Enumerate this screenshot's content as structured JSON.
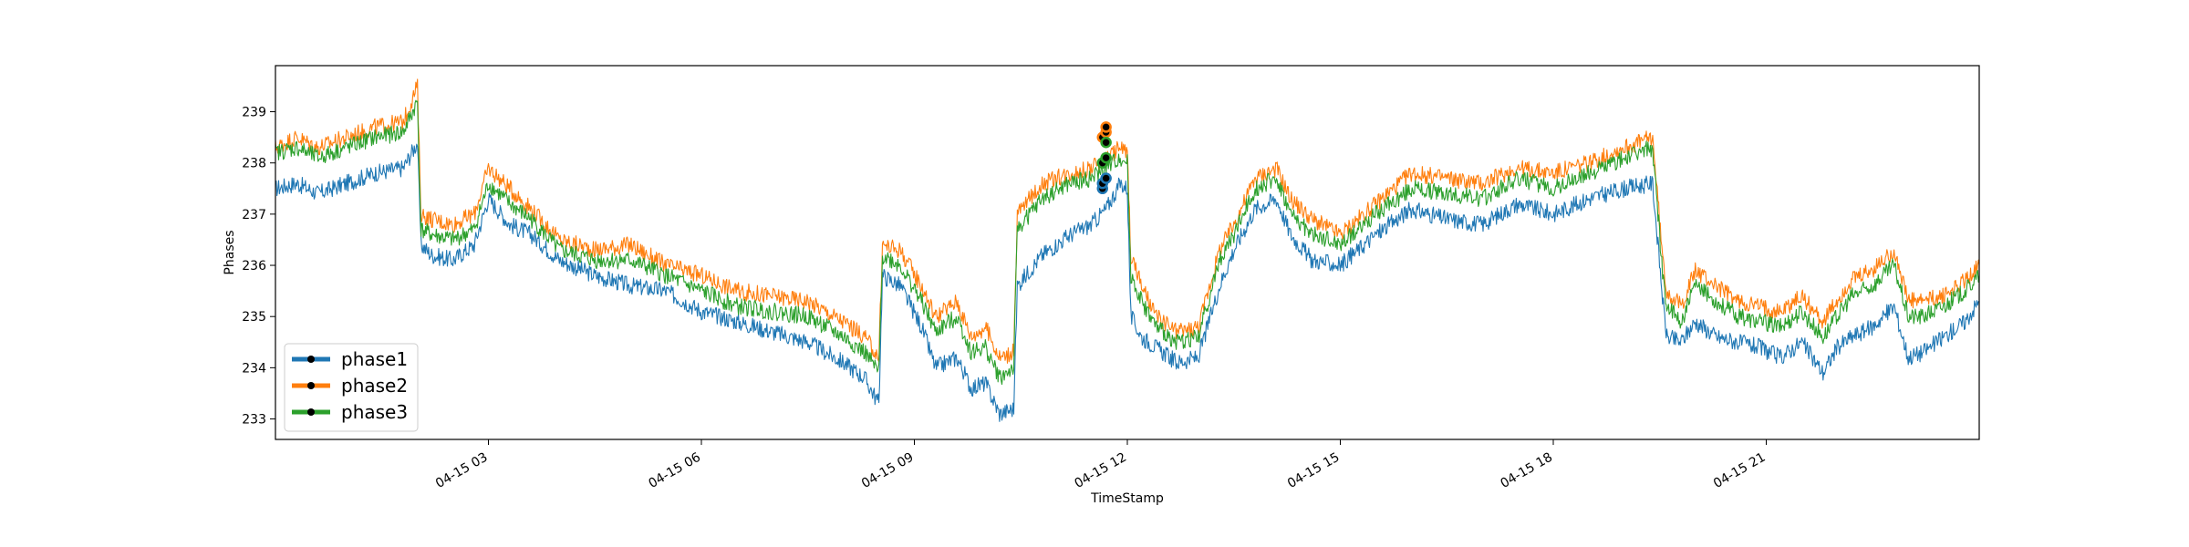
{
  "chart_data": {
    "type": "line",
    "title": "",
    "xlabel": "TimeStamp",
    "ylabel": "Phases",
    "x_ticks": [
      "04-15 03",
      "04-15 06",
      "04-15 09",
      "04-15 12",
      "04-15 15",
      "04-15 18",
      "04-15 21"
    ],
    "x_tick_hours": [
      3,
      6,
      9,
      12,
      15,
      18,
      21
    ],
    "xlim_hours": [
      0.0,
      24.0
    ],
    "y_ticks": [
      233,
      234,
      235,
      236,
      237,
      238,
      239
    ],
    "ylim": [
      232.6,
      239.9
    ],
    "grid": false,
    "legend": {
      "position": "lower-left",
      "entries": [
        "phase1",
        "phase2",
        "phase3"
      ]
    },
    "series": [
      {
        "name": "phase1",
        "color": "#1f77b4",
        "x_hours": [
          0.0,
          0.3,
          0.6,
          1.0,
          1.4,
          1.8,
          2.0,
          2.05,
          2.2,
          2.5,
          2.8,
          3.0,
          3.3,
          3.6,
          4.0,
          4.5,
          5.0,
          5.5,
          6.0,
          6.5,
          7.0,
          7.5,
          8.0,
          8.3,
          8.5,
          8.55,
          8.8,
          9.1,
          9.3,
          9.6,
          9.8,
          10.0,
          10.2,
          10.4,
          10.45,
          10.8,
          11.2,
          11.5,
          11.7,
          11.9,
          12.0,
          12.05,
          12.2,
          12.4,
          12.7,
          13.0,
          13.3,
          13.5,
          13.8,
          14.1,
          14.3,
          14.6,
          15.0,
          15.5,
          16.0,
          16.5,
          17.0,
          17.5,
          18.0,
          18.5,
          19.0,
          19.4,
          19.55,
          19.6,
          19.8,
          20.0,
          20.3,
          20.6,
          20.9,
          21.2,
          21.5,
          21.8,
          22.0,
          22.2,
          22.5,
          22.8,
          23.0,
          23.2,
          23.5,
          23.8,
          24.0
        ],
        "values": [
          237.5,
          237.6,
          237.4,
          237.6,
          237.8,
          237.9,
          238.4,
          236.4,
          236.2,
          236.1,
          236.4,
          237.3,
          236.8,
          236.6,
          236.1,
          235.8,
          235.6,
          235.5,
          235.1,
          234.9,
          234.7,
          234.5,
          234.1,
          233.8,
          233.3,
          235.8,
          235.6,
          234.8,
          234.0,
          234.2,
          233.6,
          233.7,
          233.1,
          233.2,
          235.6,
          236.2,
          236.6,
          236.8,
          237.1,
          237.6,
          237.5,
          235.0,
          234.6,
          234.4,
          234.1,
          234.2,
          235.6,
          236.3,
          237.1,
          237.3,
          236.6,
          236.1,
          236.0,
          236.6,
          237.1,
          236.9,
          236.8,
          237.2,
          237.0,
          237.3,
          237.5,
          237.6,
          235.2,
          234.6,
          234.5,
          234.9,
          234.6,
          234.5,
          234.4,
          234.2,
          234.5,
          233.9,
          234.4,
          234.6,
          234.8,
          235.2,
          234.2,
          234.3,
          234.6,
          234.9,
          235.3
        ]
      },
      {
        "name": "phase2",
        "color": "#ff7f0e",
        "x_hours": [
          0.0,
          0.3,
          0.6,
          1.0,
          1.4,
          1.8,
          2.0,
          2.05,
          2.2,
          2.5,
          2.8,
          3.0,
          3.3,
          3.6,
          4.0,
          4.5,
          5.0,
          5.5,
          6.0,
          6.5,
          7.0,
          7.5,
          8.0,
          8.3,
          8.5,
          8.55,
          8.8,
          9.1,
          9.3,
          9.6,
          9.8,
          10.0,
          10.2,
          10.4,
          10.45,
          10.8,
          11.2,
          11.5,
          11.7,
          11.9,
          12.0,
          12.05,
          12.2,
          12.4,
          12.7,
          13.0,
          13.3,
          13.5,
          13.8,
          14.1,
          14.3,
          14.6,
          15.0,
          15.5,
          16.0,
          16.5,
          17.0,
          17.5,
          18.0,
          18.5,
          19.0,
          19.4,
          19.55,
          19.6,
          19.8,
          20.0,
          20.3,
          20.6,
          20.9,
          21.2,
          21.5,
          21.8,
          22.0,
          22.2,
          22.5,
          22.8,
          23.0,
          23.2,
          23.5,
          23.8,
          24.0
        ],
        "values": [
          238.3,
          238.5,
          238.3,
          238.5,
          238.7,
          238.8,
          239.5,
          237.0,
          236.9,
          236.8,
          237.0,
          237.9,
          237.5,
          237.1,
          236.5,
          236.3,
          236.4,
          236.0,
          235.8,
          235.5,
          235.4,
          235.3,
          234.9,
          234.6,
          234.2,
          236.4,
          236.3,
          235.6,
          235.0,
          235.3,
          234.6,
          234.8,
          234.2,
          234.3,
          237.0,
          237.6,
          237.8,
          237.9,
          238.1,
          238.3,
          238.2,
          236.2,
          235.6,
          235.0,
          234.7,
          234.8,
          236.3,
          236.8,
          237.7,
          237.9,
          237.3,
          236.9,
          236.6,
          237.2,
          237.8,
          237.7,
          237.6,
          237.9,
          237.8,
          238.0,
          238.3,
          238.5,
          236.0,
          235.5,
          235.2,
          235.9,
          235.6,
          235.3,
          235.2,
          235.1,
          235.4,
          234.9,
          235.3,
          235.7,
          235.9,
          236.3,
          235.3,
          235.3,
          235.4,
          235.7,
          236.0
        ]
      },
      {
        "name": "phase3",
        "color": "#2ca02c",
        "x_hours": [
          0.0,
          0.3,
          0.6,
          1.0,
          1.4,
          1.8,
          2.0,
          2.05,
          2.2,
          2.5,
          2.8,
          3.0,
          3.3,
          3.6,
          4.0,
          4.5,
          5.0,
          5.5,
          6.0,
          6.5,
          7.0,
          7.5,
          8.0,
          8.3,
          8.5,
          8.55,
          8.8,
          9.1,
          9.3,
          9.6,
          9.8,
          10.0,
          10.2,
          10.4,
          10.45,
          10.8,
          11.2,
          11.5,
          11.7,
          11.9,
          12.0,
          12.05,
          12.2,
          12.4,
          12.7,
          13.0,
          13.3,
          13.5,
          13.8,
          14.1,
          14.3,
          14.6,
          15.0,
          15.5,
          16.0,
          16.5,
          17.0,
          17.5,
          18.0,
          18.5,
          19.0,
          19.4,
          19.55,
          19.6,
          19.8,
          20.0,
          20.3,
          20.6,
          20.9,
          21.2,
          21.5,
          21.8,
          22.0,
          22.2,
          22.5,
          22.8,
          23.0,
          23.2,
          23.5,
          23.8,
          24.0
        ],
        "values": [
          238.2,
          238.3,
          238.1,
          238.3,
          238.5,
          238.6,
          239.2,
          236.7,
          236.6,
          236.5,
          236.7,
          237.6,
          237.2,
          236.9,
          236.3,
          236.1,
          236.1,
          235.8,
          235.5,
          235.2,
          235.1,
          235.0,
          234.6,
          234.3,
          233.9,
          236.2,
          236.0,
          235.3,
          234.7,
          235.0,
          234.3,
          234.4,
          233.8,
          234.0,
          236.7,
          237.3,
          237.6,
          237.7,
          237.9,
          238.1,
          238.0,
          235.8,
          235.3,
          234.8,
          234.5,
          234.6,
          236.1,
          236.6,
          237.5,
          237.7,
          237.0,
          236.6,
          236.4,
          237.0,
          237.5,
          237.4,
          237.3,
          237.7,
          237.5,
          237.8,
          238.1,
          238.3,
          235.7,
          235.2,
          234.9,
          235.6,
          235.3,
          235.0,
          234.9,
          234.8,
          235.1,
          234.6,
          235.0,
          235.4,
          235.6,
          236.0,
          235.0,
          235.0,
          235.2,
          235.5,
          235.8
        ]
      }
    ],
    "markers": [
      {
        "series": "phase1",
        "x_hours": [
          11.65,
          11.65,
          11.7
        ],
        "values": [
          237.5,
          237.6,
          237.7
        ]
      },
      {
        "series": "phase2",
        "x_hours": [
          11.65,
          11.7,
          11.7
        ],
        "values": [
          238.5,
          238.6,
          238.7
        ]
      },
      {
        "series": "phase3",
        "x_hours": [
          11.65,
          11.7,
          11.7
        ],
        "values": [
          238.0,
          238.1,
          238.4
        ]
      }
    ]
  }
}
